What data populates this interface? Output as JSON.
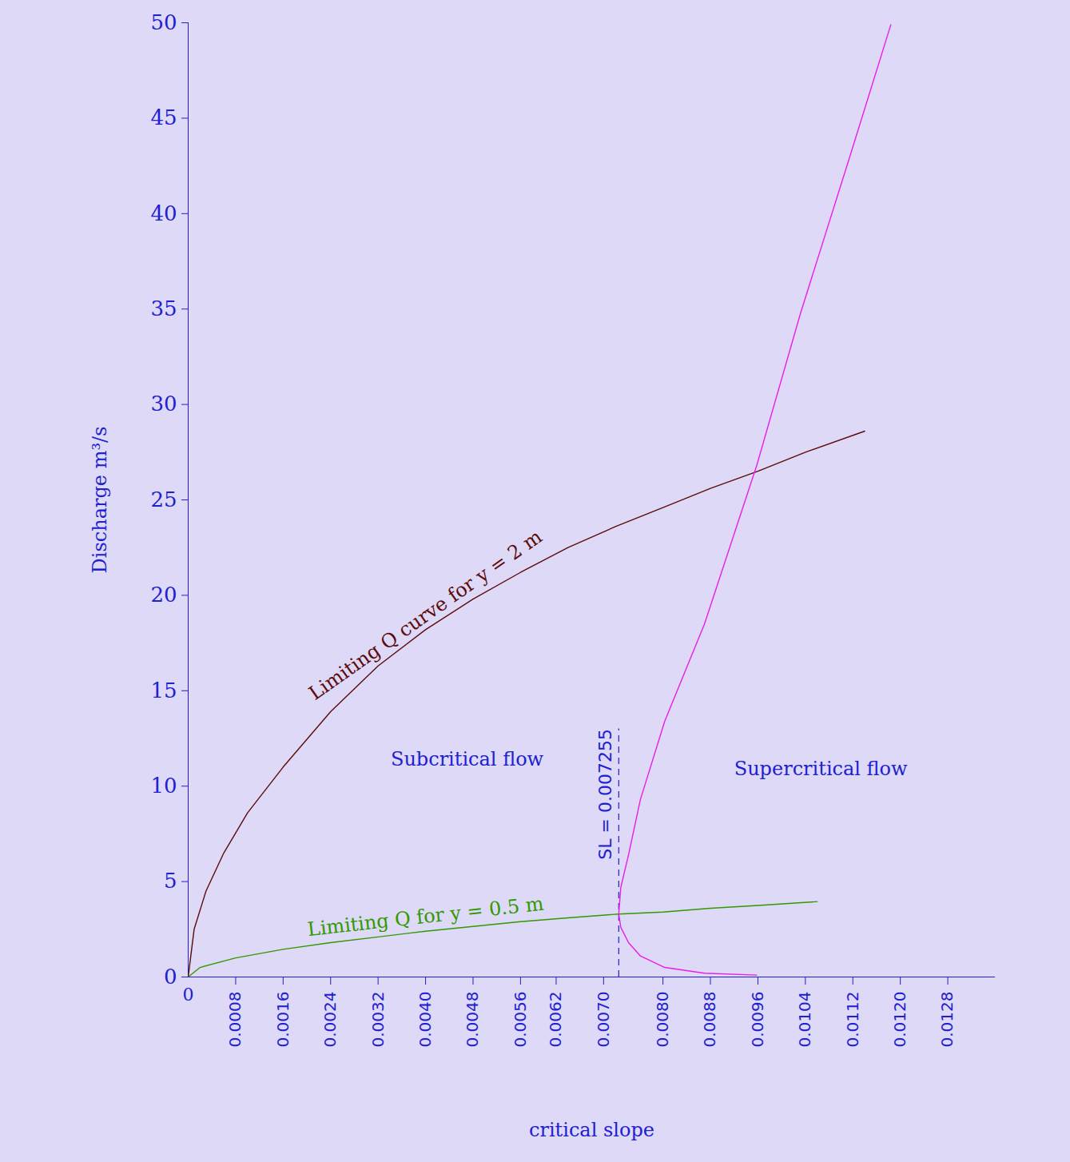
{
  "chart_data": {
    "type": "line",
    "x_label": "critical slope",
    "y_label": "Discharge m³/s",
    "xlim": [
      0,
      0.0136
    ],
    "ylim": [
      0,
      50
    ],
    "xticks": [
      0,
      0.0008,
      0.0016,
      0.0024,
      0.0032,
      {
        "value": 0.004,
        "label": "0.0040"
      },
      0.0048,
      0.0056,
      0.0062,
      {
        "value": 0.007,
        "label": "0.0070"
      },
      {
        "value": 0.008,
        "label": "0.0080"
      },
      0.0088,
      0.0096,
      0.0104,
      0.0112,
      {
        "value": 0.012,
        "label": "0.0120"
      },
      0.0128
    ],
    "yticks": [
      0,
      5,
      10,
      15,
      20,
      25,
      30,
      35,
      40,
      45,
      50
    ],
    "grid": false,
    "series": [
      {
        "name": "Limiting Q curve for y = 2 m",
        "color": "#5c0a0a",
        "line_style": "solid",
        "x": [
          0,
          0.0001,
          0.0003,
          0.0006,
          0.001,
          0.0016,
          0.0024,
          0.0032,
          0.004,
          0.0048,
          0.0056,
          0.0064,
          0.0072,
          0.008,
          0.0088,
          0.0096,
          0.0104,
          0.0114
        ],
        "values": [
          0,
          2.5,
          4.5,
          6.5,
          8.6,
          11.0,
          13.9,
          16.3,
          18.2,
          19.8,
          21.2,
          22.5,
          23.6,
          24.6,
          25.6,
          26.5,
          27.5,
          28.6
        ]
      },
      {
        "name": "Limiting Q for y = 0.5 m",
        "color": "#339900",
        "line_style": "solid",
        "x": [
          0,
          0.0002,
          0.0008,
          0.0016,
          0.0024,
          0.0032,
          0.004,
          0.0048,
          0.0056,
          0.0064,
          0.007255,
          0.008,
          0.0088,
          0.0096,
          0.0106
        ],
        "values": [
          0,
          0.5,
          1.0,
          1.45,
          1.8,
          2.1,
          2.4,
          2.65,
          2.9,
          3.1,
          3.3,
          3.4,
          3.6,
          3.75,
          3.95
        ]
      },
      {
        "color": "#e81ee8",
        "line_style": "solid",
        "x": [
          0.00958,
          0.0087,
          0.00803,
          0.00762,
          0.00742,
          0.00729,
          0.007255,
          0.00729,
          0.00742,
          0.00762,
          0.00803,
          0.0087,
          0.00958,
          0.01032,
          0.01113,
          0.01184
        ],
        "values": [
          0.1,
          0.2,
          0.5,
          1.1,
          1.8,
          2.6,
          3.3,
          4.7,
          6.4,
          9.3,
          13.4,
          18.5,
          26.8,
          34.8,
          42.8,
          49.9
        ]
      }
    ],
    "vlines": [
      {
        "x": 0.007255,
        "ylim": [
          0,
          13
        ],
        "label": "SL = 0.007255",
        "line_style": "dashed",
        "color": "#2020d0"
      }
    ],
    "annotations": [
      {
        "text": "Subcritical flow",
        "x": 0.0047,
        "y": 11.4
      },
      {
        "text": "Supercritical flow",
        "x": 0.01066,
        "y": 10.9
      }
    ]
  }
}
